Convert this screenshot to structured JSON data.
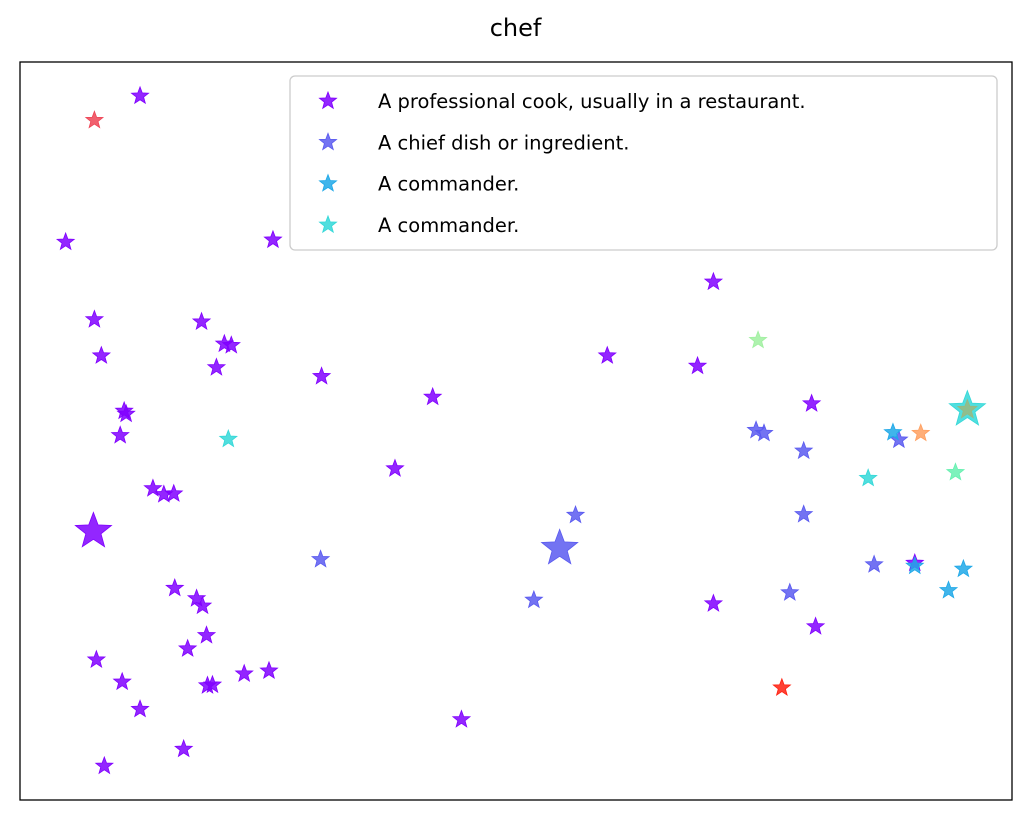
{
  "chart_data": {
    "type": "scatter",
    "title": "chef",
    "xlabel": "",
    "ylabel": "",
    "grid": false,
    "axis_ticks": false,
    "marker": "star",
    "legend_placement": "top-right",
    "xlim": [
      0,
      100
    ],
    "ylim": [
      0,
      100
    ],
    "series": [
      {
        "name": "A professional cook, usually in a restaurant.",
        "color": "#8000ff",
        "points": [
          [
            12.1,
            95.4
          ],
          [
            4.6,
            75.6
          ],
          [
            7.5,
            65.1
          ],
          [
            8.2,
            60.2
          ],
          [
            18.3,
            64.8
          ],
          [
            20.6,
            61.8
          ],
          [
            21.3,
            61.6
          ],
          [
            19.8,
            58.6
          ],
          [
            25.5,
            75.9
          ],
          [
            30.4,
            57.4
          ],
          [
            10.7,
            52.3
          ],
          [
            10.5,
            52.7
          ],
          [
            10.1,
            49.4
          ],
          [
            13.4,
            42.2
          ],
          [
            14.5,
            41.4
          ],
          [
            15.5,
            41.5
          ],
          [
            41.6,
            54.6
          ],
          [
            37.8,
            44.9
          ],
          [
            59.2,
            60.2
          ],
          [
            68.3,
            58.8
          ],
          [
            69.9,
            70.2
          ],
          [
            79.8,
            53.7
          ],
          [
            15.6,
            28.7
          ],
          [
            17.8,
            27.3
          ],
          [
            18.4,
            26.3
          ],
          [
            18.8,
            22.3
          ],
          [
            16.9,
            20.5
          ],
          [
            7.7,
            19.0
          ],
          [
            10.3,
            16.0
          ],
          [
            12.1,
            12.3
          ],
          [
            18.9,
            15.5
          ],
          [
            19.4,
            15.6
          ],
          [
            22.6,
            17.1
          ],
          [
            25.1,
            17.5
          ],
          [
            16.5,
            6.9
          ],
          [
            44.5,
            10.9
          ],
          [
            69.9,
            26.6
          ],
          [
            80.2,
            23.5
          ],
          [
            90.2,
            32.1
          ],
          [
            8.5,
            4.6
          ]
        ],
        "large_points": [
          [
            7.4,
            36.4
          ]
        ]
      },
      {
        "name": "A chief dish or ingredient.",
        "color": "#5a5af0",
        "points": [
          [
            30.3,
            32.6
          ],
          [
            56.0,
            38.6
          ],
          [
            51.8,
            27.1
          ],
          [
            74.2,
            50.1
          ],
          [
            75.0,
            49.7
          ],
          [
            79.0,
            47.3
          ],
          [
            79.0,
            38.7
          ],
          [
            77.6,
            28.1
          ],
          [
            86.1,
            31.9
          ],
          [
            88.6,
            48.8
          ]
        ],
        "large_points": [
          [
            54.4,
            34.1
          ]
        ]
      },
      {
        "name": "A commander.",
        "color": "#1ea8e8",
        "points": [
          [
            88.0,
            49.8
          ],
          [
            90.2,
            31.7
          ],
          [
            95.1,
            31.3
          ],
          [
            93.6,
            28.4
          ]
        ]
      },
      {
        "name": "A commander.",
        "color": "#33d8d8",
        "points": [
          [
            21.0,
            48.9
          ],
          [
            85.5,
            43.6
          ]
        ],
        "large_points": [
          [
            95.5,
            52.9
          ]
        ]
      }
    ],
    "other_points": [
      {
        "color": "#ee4455",
        "x": 7.5,
        "y": 92.1
      },
      {
        "color": "#a0f0a0",
        "x": 74.4,
        "y": 62.3
      },
      {
        "color": "#ffa060",
        "x": 90.8,
        "y": 49.7
      },
      {
        "color": "#66f0b0",
        "x": 94.3,
        "y": 44.4
      },
      {
        "color": "#ff2010",
        "x": 76.8,
        "y": 15.2
      },
      {
        "color": "#9ab880",
        "x": 95.5,
        "y": 52.9
      }
    ]
  }
}
